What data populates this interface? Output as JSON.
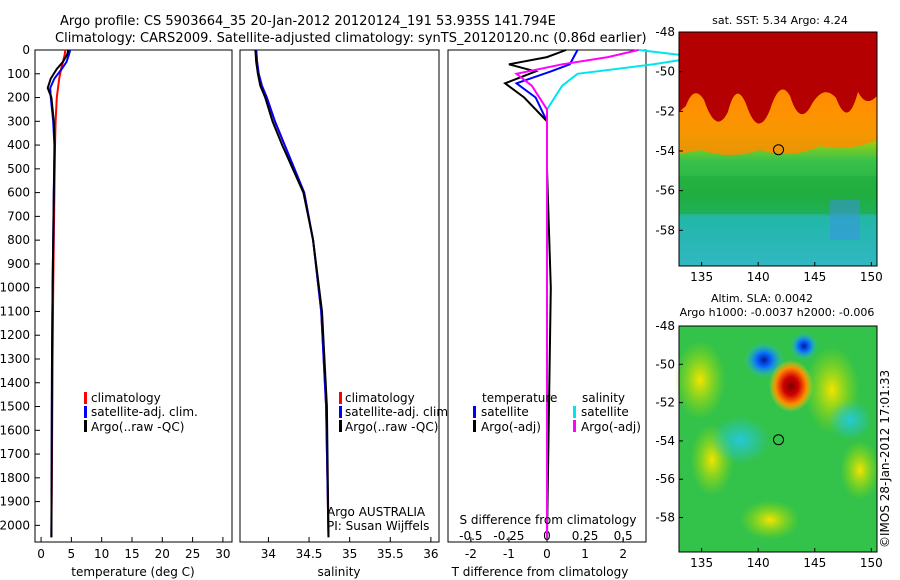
{
  "header": {
    "line1": "Argo profile: CS 5903664_35 20-Jan-2012 20120124_191 53.935S 141.794E",
    "line2": "Climatology: CARS2009. Satellite-adjusted climatology: synTS_20120120.nc (0.86d earlier)"
  },
  "colors": {
    "climatology": "#ff0000",
    "satellite": "#0000ff",
    "argo": "#000000",
    "salinity_satellite": "#00e5ee",
    "salinity_argo": "#ff00ff"
  },
  "chart_data": [
    {
      "type": "line",
      "name": "temperature-profile",
      "xlabel": "temperature (deg C)",
      "ylabel": "",
      "xlim": [
        -1,
        31.5
      ],
      "ylim": [
        2070,
        0
      ],
      "xticks": [
        "0",
        "5",
        "10",
        "15",
        "20",
        "25",
        "30"
      ],
      "yticks": [
        "0",
        "100",
        "200",
        "300",
        "400",
        "500",
        "600",
        "700",
        "800",
        "900",
        "1000",
        "1100",
        "1200",
        "1300",
        "1400",
        "1500",
        "1600",
        "1700",
        "1800",
        "1900",
        "2000"
      ],
      "legend": [
        "climatology",
        "satellite-adj. clim.",
        "Argo(..raw -QC)"
      ],
      "series": [
        {
          "name": "climatology",
          "color": "#ff0000",
          "x": [
            4.0,
            3.9,
            3.6,
            3.3,
            3.0,
            2.8,
            2.6,
            2.4,
            2.3,
            2.2,
            2.1,
            2.0,
            1.9,
            1.8,
            1.7
          ],
          "y": [
            0,
            20,
            50,
            80,
            120,
            160,
            200,
            300,
            400,
            600,
            800,
            1000,
            1300,
            1700,
            2050
          ]
        },
        {
          "name": "satellite-adj. clim.",
          "color": "#0000ff",
          "x": [
            4.8,
            4.6,
            4.2,
            3.4,
            2.2,
            1.5,
            1.6,
            2.0,
            2.2,
            2.1,
            2.0,
            1.9,
            1.8,
            1.75,
            1.7
          ],
          "y": [
            0,
            20,
            50,
            80,
            120,
            160,
            200,
            300,
            400,
            600,
            800,
            1000,
            1300,
            1700,
            2050
          ]
        },
        {
          "name": "Argo",
          "color": "#000000",
          "x": [
            4.5,
            4.3,
            3.6,
            2.6,
            1.6,
            1.1,
            1.7,
            2.1,
            2.25,
            2.1,
            2.0,
            1.9,
            1.8,
            1.75,
            1.7
          ],
          "y": [
            0,
            20,
            50,
            80,
            120,
            160,
            200,
            300,
            400,
            600,
            800,
            1000,
            1300,
            1700,
            2050
          ]
        }
      ]
    },
    {
      "type": "line",
      "name": "salinity-profile",
      "xlabel": "salinity",
      "ylabel": "",
      "xlim": [
        33.65,
        36.1
      ],
      "ylim": [
        2070,
        0
      ],
      "xticks": [
        "34",
        "34.5",
        "35",
        "35.5",
        "36"
      ],
      "legend": [
        "climatology",
        "satellite-adj. clim.",
        "Argo(..raw -QC)"
      ],
      "annotations": [
        "Argo AUSTRALIA",
        "PI: Susan Wijffels"
      ],
      "series": [
        {
          "name": "climatology",
          "color": "#ff0000",
          "x": [
            33.85,
            33.86,
            33.88,
            33.92,
            33.98,
            34.08,
            34.2,
            34.32,
            34.44,
            34.55,
            34.65,
            34.71,
            34.74
          ],
          "y": [
            0,
            50,
            100,
            150,
            200,
            300,
            400,
            500,
            600,
            800,
            1100,
            1500,
            2050
          ]
        },
        {
          "name": "satellite-adj. clim.",
          "color": "#0000ff",
          "x": [
            33.85,
            33.86,
            33.88,
            33.92,
            33.98,
            34.08,
            34.2,
            34.32,
            34.44,
            34.55,
            34.65,
            34.71,
            34.74
          ],
          "y": [
            0,
            50,
            100,
            150,
            200,
            300,
            400,
            500,
            600,
            800,
            1100,
            1500,
            2050
          ]
        },
        {
          "name": "Argo",
          "color": "#000000",
          "x": [
            33.84,
            33.85,
            33.87,
            33.9,
            33.96,
            34.05,
            34.17,
            34.3,
            34.43,
            34.55,
            34.66,
            34.72,
            34.74
          ],
          "y": [
            0,
            50,
            100,
            150,
            200,
            300,
            400,
            500,
            600,
            800,
            1100,
            1500,
            2050
          ]
        }
      ]
    },
    {
      "type": "line",
      "name": "difference-profile",
      "xlabel": "T difference from climatology",
      "x2label": "S difference from climatology",
      "xlim": [
        -2.6,
        2.6
      ],
      "ylim": [
        2070,
        0
      ],
      "xticks": [
        "-2",
        "-1",
        "0",
        "1",
        "2"
      ],
      "x2ticks": [
        "-0.5",
        "-0.25",
        "0",
        "0.25",
        "0.5"
      ],
      "legend": {
        "temperature_title": "temperature",
        "salinity_title": "salinity",
        "items": [
          "satellite",
          "Argo(-adj)",
          "satellite",
          "Argo(-adj)"
        ]
      },
      "series": [
        {
          "name": "T satellite",
          "color": "#0000ff",
          "x": [
            0.8,
            0.7,
            0.6,
            0.1,
            -0.8,
            -0.3,
            0.0,
            0.0,
            0.0,
            0.0
          ],
          "y": [
            0,
            30,
            60,
            90,
            140,
            200,
            300,
            500,
            1000,
            2050
          ]
        },
        {
          "name": "T Argo(-adj)",
          "color": "#000000",
          "x": [
            0.5,
            0.0,
            -1.0,
            -0.3,
            -1.1,
            -0.6,
            0.0,
            0.0,
            0.1,
            0.0
          ],
          "y": [
            0,
            30,
            60,
            90,
            140,
            200,
            300,
            500,
            1000,
            2050
          ]
        },
        {
          "name": "S satellite",
          "color": "#00e5ee",
          "x": [
            0.6,
            1.0,
            0.7,
            0.2,
            0.1,
            0.0,
            0.0,
            0.0,
            0.0
          ],
          "y": [
            0,
            30,
            60,
            100,
            150,
            250,
            500,
            1000,
            2050
          ]
        },
        {
          "name": "S Argo(-adj)",
          "color": "#ff00ff",
          "x": [
            0.6,
            0.4,
            0.1,
            -0.2,
            -0.1,
            0.0,
            0.0,
            0.0,
            0.0
          ],
          "y": [
            0,
            30,
            60,
            100,
            150,
            250,
            500,
            1000,
            2050
          ]
        }
      ]
    },
    {
      "type": "heatmap",
      "name": "sst-map",
      "title": "sat. SST: 5.34  Argo: 4.24",
      "xlim": [
        133,
        150.5
      ],
      "ylim": [
        -59.8,
        -48
      ],
      "xticks": [
        "135",
        "140",
        "145",
        "150"
      ],
      "yticks": [
        "-48",
        "-50",
        "-52",
        "-54",
        "-56",
        "-58"
      ],
      "marker": {
        "lon": 141.794,
        "lat": -53.935
      }
    },
    {
      "type": "heatmap",
      "name": "sla-map",
      "title": "Altim. SLA: 0.0042",
      "subtitle": "Argo h1000: -0.0037 h2000: -0.006",
      "side_label": "©IMOS 28-Jan-2012 17:01:33",
      "xlim": [
        133,
        150.5
      ],
      "ylim": [
        -59.8,
        -48
      ],
      "xticks": [
        "135",
        "140",
        "145",
        "150"
      ],
      "yticks": [
        "-48",
        "-50",
        "-52",
        "-54",
        "-56",
        "-58"
      ],
      "marker": {
        "lon": 141.794,
        "lat": -53.935
      }
    }
  ]
}
